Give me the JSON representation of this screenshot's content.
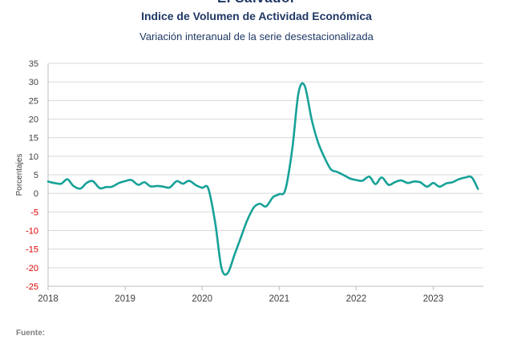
{
  "chart_data": {
    "type": "line",
    "header_partial": "El Salvador",
    "title": "Indice de Volumen de  Actividad Económica",
    "subtitle": "Variación interanual de la serie desestacionalizada",
    "ylabel": "Porcentajes",
    "xlabel": "",
    "ylim": [
      -25,
      35
    ],
    "yticks": [
      -25,
      -20,
      -15,
      -10,
      -5,
      0,
      5,
      10,
      15,
      20,
      25,
      30,
      35
    ],
    "xlim": [
      2018,
      2023.65
    ],
    "xticks": [
      2018,
      2019,
      2020,
      2021,
      2022,
      2023
    ],
    "grid": true,
    "line_color": "#17a198",
    "negative_tick_color": "#e00000",
    "x": [
      2018.0,
      2018.08,
      2018.17,
      2018.25,
      2018.33,
      2018.42,
      2018.5,
      2018.58,
      2018.67,
      2018.75,
      2018.83,
      2018.92,
      2019.0,
      2019.08,
      2019.17,
      2019.25,
      2019.33,
      2019.42,
      2019.5,
      2019.58,
      2019.67,
      2019.75,
      2019.83,
      2019.92,
      2020.0,
      2020.08,
      2020.17,
      2020.25,
      2020.33,
      2020.42,
      2020.5,
      2020.58,
      2020.67,
      2020.75,
      2020.83,
      2020.92,
      2021.0,
      2021.08,
      2021.17,
      2021.25,
      2021.33,
      2021.42,
      2021.5,
      2021.58,
      2021.67,
      2021.75,
      2021.83,
      2021.92,
      2022.0,
      2022.08,
      2022.17,
      2022.25,
      2022.33,
      2022.42,
      2022.5,
      2022.58,
      2022.67,
      2022.75,
      2022.83,
      2022.92,
      2023.0,
      2023.08,
      2023.17,
      2023.25,
      2023.33,
      2023.42,
      2023.5,
      2023.58
    ],
    "values": [
      3.2,
      2.8,
      2.6,
      3.8,
      2.0,
      1.3,
      2.8,
      3.3,
      1.4,
      1.7,
      1.8,
      2.8,
      3.3,
      3.6,
      2.3,
      3.0,
      1.9,
      2.0,
      1.8,
      1.6,
      3.3,
      2.6,
      3.4,
      2.2,
      1.5,
      1.3,
      -8.0,
      -20.0,
      -21.5,
      -16.5,
      -12.0,
      -7.5,
      -3.8,
      -2.8,
      -3.5,
      -1.0,
      -0.2,
      1.0,
      12.0,
      27.0,
      29.0,
      20.0,
      14.0,
      10.0,
      6.5,
      5.8,
      5.0,
      4.0,
      3.6,
      3.4,
      4.5,
      2.5,
      4.3,
      2.3,
      3.0,
      3.5,
      2.8,
      3.2,
      3.0,
      1.8,
      2.8,
      1.8,
      2.7,
      3.0,
      3.8,
      4.3,
      4.3,
      1.2
    ]
  },
  "footer": {
    "source_label": "Fuente:"
  }
}
